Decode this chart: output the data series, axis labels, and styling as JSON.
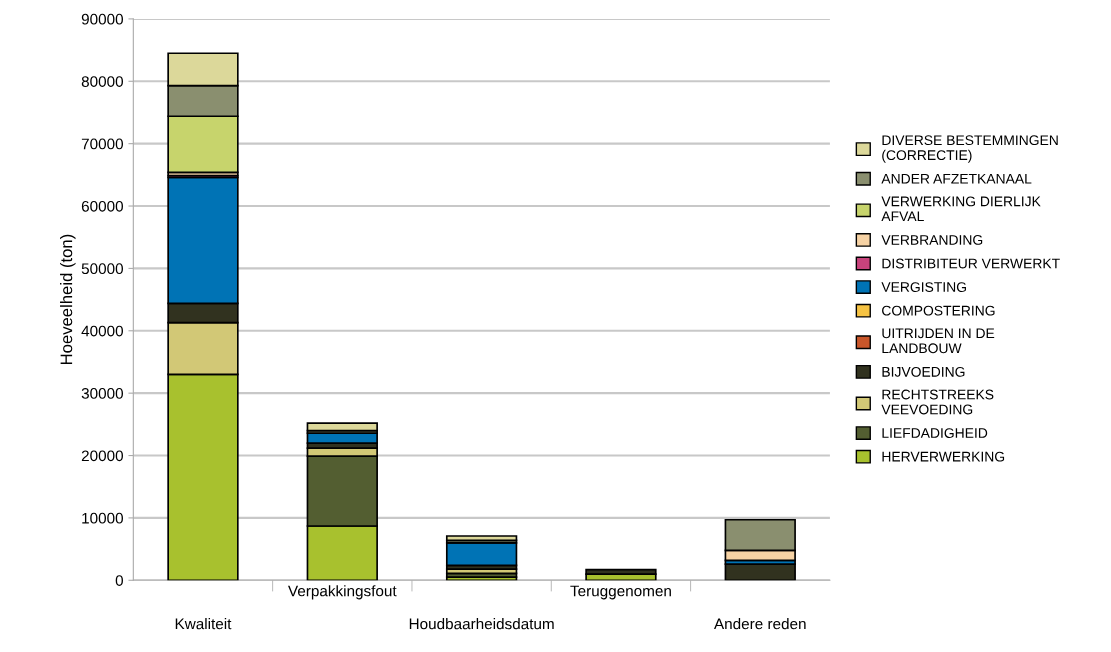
{
  "chart_data": {
    "type": "bar",
    "stacked": true,
    "ylabel": "Hoeveelheid (ton)",
    "categories": [
      "Kwaliteit",
      "Verpakkingsfout",
      "Houdbaarheidsdatum",
      "Teruggenomen",
      "Andere reden"
    ],
    "series": [
      {
        "name": "HERVERWERKING",
        "color": "#a8c12e",
        "values": [
          33000,
          8700,
          500,
          1000,
          0
        ]
      },
      {
        "name": "LIEFDADIGHEID",
        "color": "#535e31",
        "values": [
          0,
          11200,
          600,
          0,
          0
        ]
      },
      {
        "name": "RECHTSTREEKS\nVEEVOEDING",
        "color": "#d2c876",
        "values": [
          8300,
          1300,
          700,
          0,
          0
        ]
      },
      {
        "name": "BIJVOEDING",
        "color": "#31321f",
        "values": [
          3100,
          800,
          600,
          700,
          2600
        ]
      },
      {
        "name": "UITRIJDEN IN DE\nLANDBOUW",
        "color": "#c9562a",
        "values": [
          0,
          0,
          0,
          0,
          0
        ]
      },
      {
        "name": "COMPOSTERING",
        "color": "#f6c343",
        "values": [
          0,
          0,
          0,
          0,
          0
        ]
      },
      {
        "name": "VERGISTING",
        "color": "#0073b5",
        "values": [
          20200,
          1600,
          3600,
          0,
          600
        ]
      },
      {
        "name": "DISTRIBITEUR VERWERKT",
        "color": "#c8437c",
        "values": [
          300,
          0,
          0,
          0,
          0
        ]
      },
      {
        "name": "VERBRANDING",
        "color": "#f6d2a4",
        "values": [
          500,
          0,
          0,
          0,
          1600
        ]
      },
      {
        "name": "VERWERKING DIERLIJK\nAFVAL",
        "color": "#c7d46c",
        "values": [
          9000,
          0,
          0,
          0,
          0
        ]
      },
      {
        "name": "ANDER AFZETKANAAL",
        "color": "#8a8f6f",
        "values": [
          4900,
          400,
          400,
          0,
          4900
        ]
      },
      {
        "name": "DIVERSE BESTEMMINGEN\n(CORRECTIE)",
        "color": "#dcd89a",
        "values": [
          5200,
          1200,
          700,
          0,
          0
        ]
      }
    ],
    "ylim": [
      0,
      90000
    ],
    "yticks": [
      0,
      10000,
      20000,
      30000,
      40000,
      50000,
      60000,
      70000,
      80000,
      90000
    ],
    "grid": "y",
    "legend": "right"
  }
}
